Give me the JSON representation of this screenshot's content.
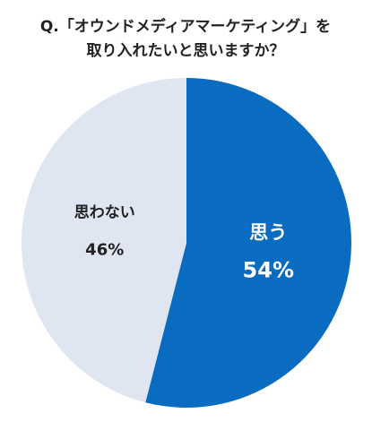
{
  "chart_data": {
    "type": "pie",
    "title": [
      "Q.「オウンドメディアマーケティング」を",
      "取り入れたいと思いますか？"
    ],
    "categories": [
      "思う",
      "思わない"
    ],
    "values": [
      54,
      46
    ],
    "value_labels": [
      "54%",
      "46%"
    ],
    "colors": [
      "#0a6cc1",
      "#dfe5f1"
    ]
  }
}
